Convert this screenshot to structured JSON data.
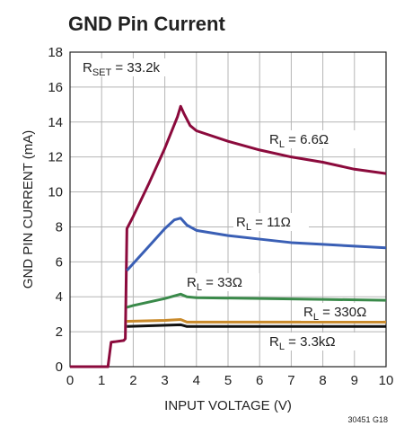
{
  "chart_data": {
    "type": "line",
    "title": "GND Pin Current",
    "x_label": "INPUT VOLTAGE (V)",
    "y_label": "GND PIN CURRENT (mA)",
    "note": "30451 G18",
    "annotation": {
      "main": "R",
      "sub": "SET",
      "rest": " = 33.2k"
    },
    "xlim": [
      0,
      10
    ],
    "xticks": [
      0,
      1,
      2,
      3,
      4,
      5,
      6,
      7,
      8,
      9,
      10
    ],
    "ylim": [
      0,
      18
    ],
    "yticks": [
      0,
      2,
      4,
      6,
      8,
      10,
      12,
      14,
      16,
      18
    ],
    "grid": true,
    "series": [
      {
        "label": {
          "main": "R",
          "sub": "L",
          "rest": " = 6.6Ω"
        },
        "color": "#8b0a3c",
        "x": [
          0,
          1.2,
          1.3,
          1.7,
          1.75,
          1.8,
          2,
          2.5,
          3,
          3.4,
          3.5,
          3.6,
          3.8,
          4,
          5,
          6,
          7,
          8,
          9,
          10
        ],
        "values": [
          0,
          0,
          1.4,
          1.5,
          1.6,
          7.9,
          8.6,
          10.5,
          12.5,
          14.3,
          14.9,
          14.5,
          13.8,
          13.5,
          12.9,
          12.4,
          12.0,
          11.7,
          11.3,
          11.05
        ]
      },
      {
        "label": {
          "main": "R",
          "sub": "L",
          "rest": " = 11Ω"
        },
        "color": "#3a5fb5",
        "x": [
          1.8,
          2,
          2.5,
          3,
          3.3,
          3.5,
          3.7,
          4,
          5,
          6,
          7,
          8,
          9,
          10
        ],
        "values": [
          5.5,
          5.9,
          6.9,
          7.9,
          8.4,
          8.5,
          8.1,
          7.8,
          7.5,
          7.3,
          7.1,
          7.0,
          6.9,
          6.8
        ]
      },
      {
        "label": {
          "main": "R",
          "sub": "L",
          "rest": " = 33Ω"
        },
        "color": "#3a8a4a",
        "x": [
          1.8,
          2,
          3,
          3.5,
          3.7,
          4,
          6,
          8,
          10
        ],
        "values": [
          3.4,
          3.5,
          3.9,
          4.15,
          4.0,
          3.95,
          3.9,
          3.85,
          3.8
        ]
      },
      {
        "label": {
          "main": "R",
          "sub": "L",
          "rest": " = 330Ω"
        },
        "color": "#c98a2b",
        "x": [
          1.8,
          3,
          3.5,
          3.7,
          10
        ],
        "values": [
          2.6,
          2.65,
          2.7,
          2.55,
          2.55
        ]
      },
      {
        "label": {
          "main": "R",
          "sub": "L",
          "rest": " = 3.3kΩ"
        },
        "color": "#111111",
        "x": [
          1.8,
          3.5,
          3.7,
          10
        ],
        "values": [
          2.3,
          2.4,
          2.3,
          2.3
        ]
      }
    ]
  }
}
